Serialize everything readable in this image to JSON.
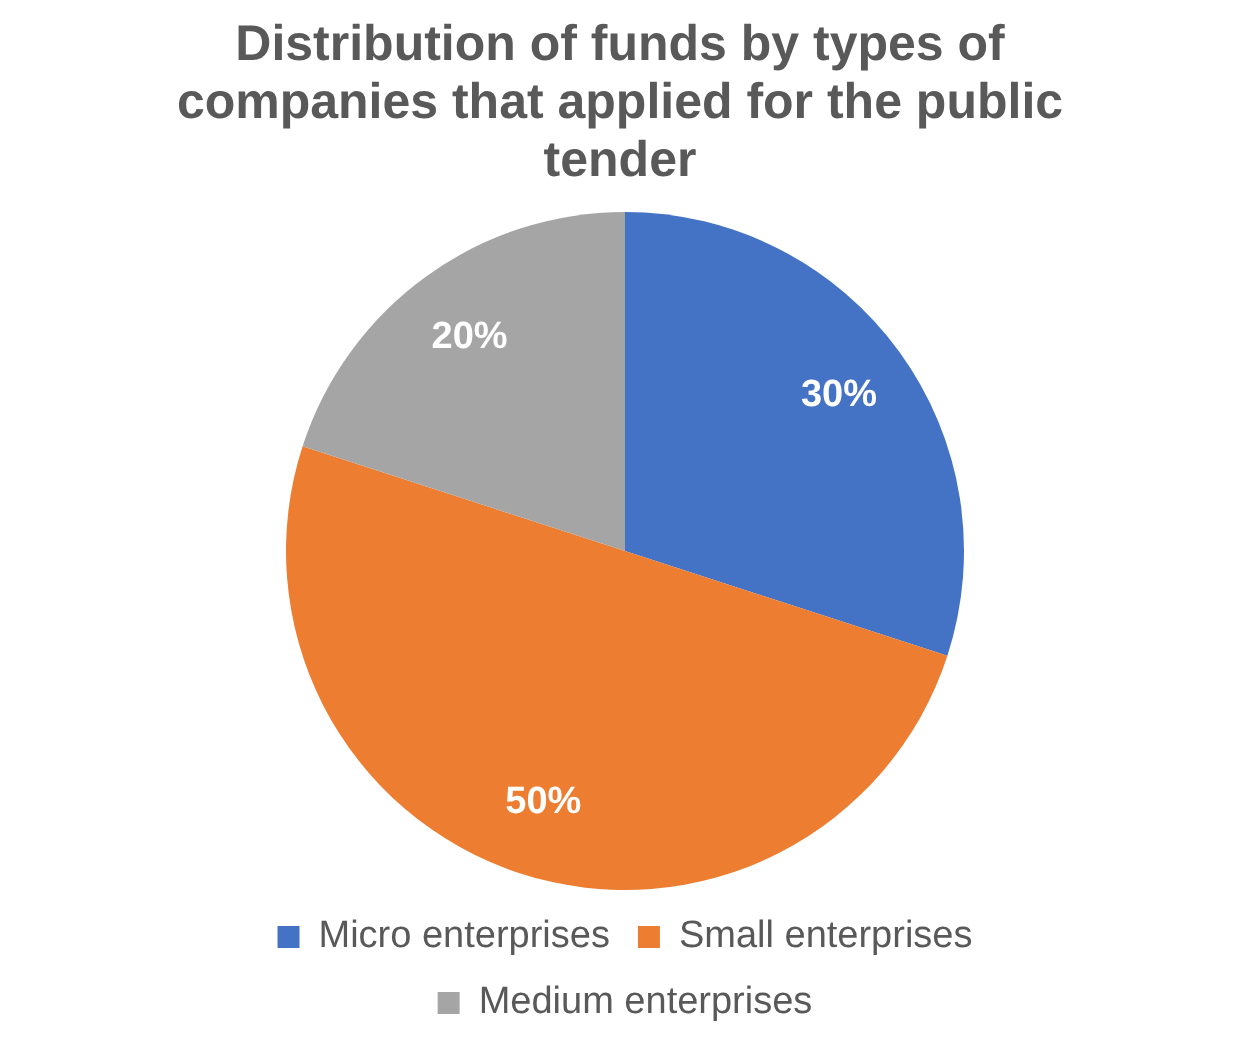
{
  "chart_data": {
    "type": "pie",
    "title": "Distribution of funds by types of companies that applied for the public tender",
    "categories": [
      "Micro enterprises",
      "Small enterprises",
      "Medium enterprises"
    ],
    "values": [
      30,
      50,
      20
    ],
    "colors": [
      "#4472c4",
      "#ed7d31",
      "#a5a5a5"
    ],
    "value_labels": [
      "30%",
      "50%",
      "20%"
    ],
    "legend": "bottom"
  }
}
